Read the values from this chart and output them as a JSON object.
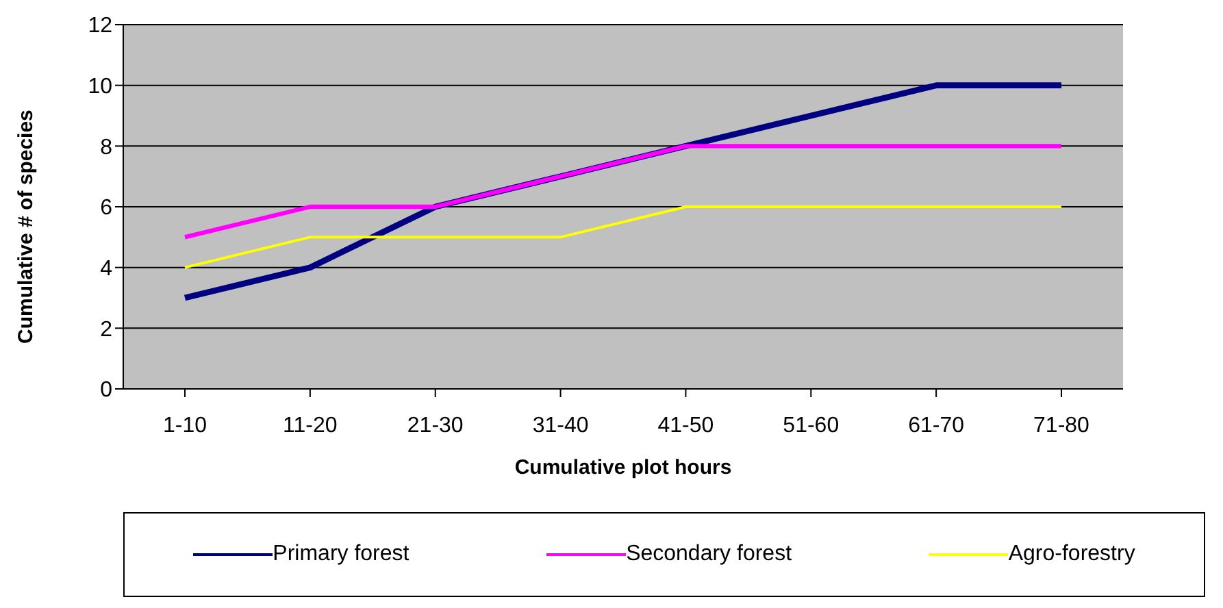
{
  "chart_data": {
    "type": "line",
    "xlabel": "Cumulative plot hours",
    "ylabel": "Cumulative # of species",
    "categories": [
      "1-10",
      "11-20",
      "21-30",
      "31-40",
      "41-50",
      "51-60",
      "61-70",
      "71-80"
    ],
    "series": [
      {
        "name": "Primary forest",
        "color": "#000080",
        "values": [
          3,
          4,
          6,
          7,
          8,
          9,
          10,
          10
        ]
      },
      {
        "name": "Secondary forest",
        "color": "#ff00ff",
        "values": [
          5,
          6,
          6,
          7,
          8,
          8,
          8,
          8
        ]
      },
      {
        "name": "Agro-forestry",
        "color": "#ffff00",
        "values": [
          4,
          5,
          5,
          5,
          6,
          6,
          6,
          6
        ]
      }
    ],
    "ylim": [
      0,
      12
    ],
    "yticks": [
      0,
      2,
      4,
      6,
      8,
      10,
      12
    ],
    "grid": "y",
    "legend": "bottom",
    "marker": "none",
    "line_style": "solid"
  }
}
